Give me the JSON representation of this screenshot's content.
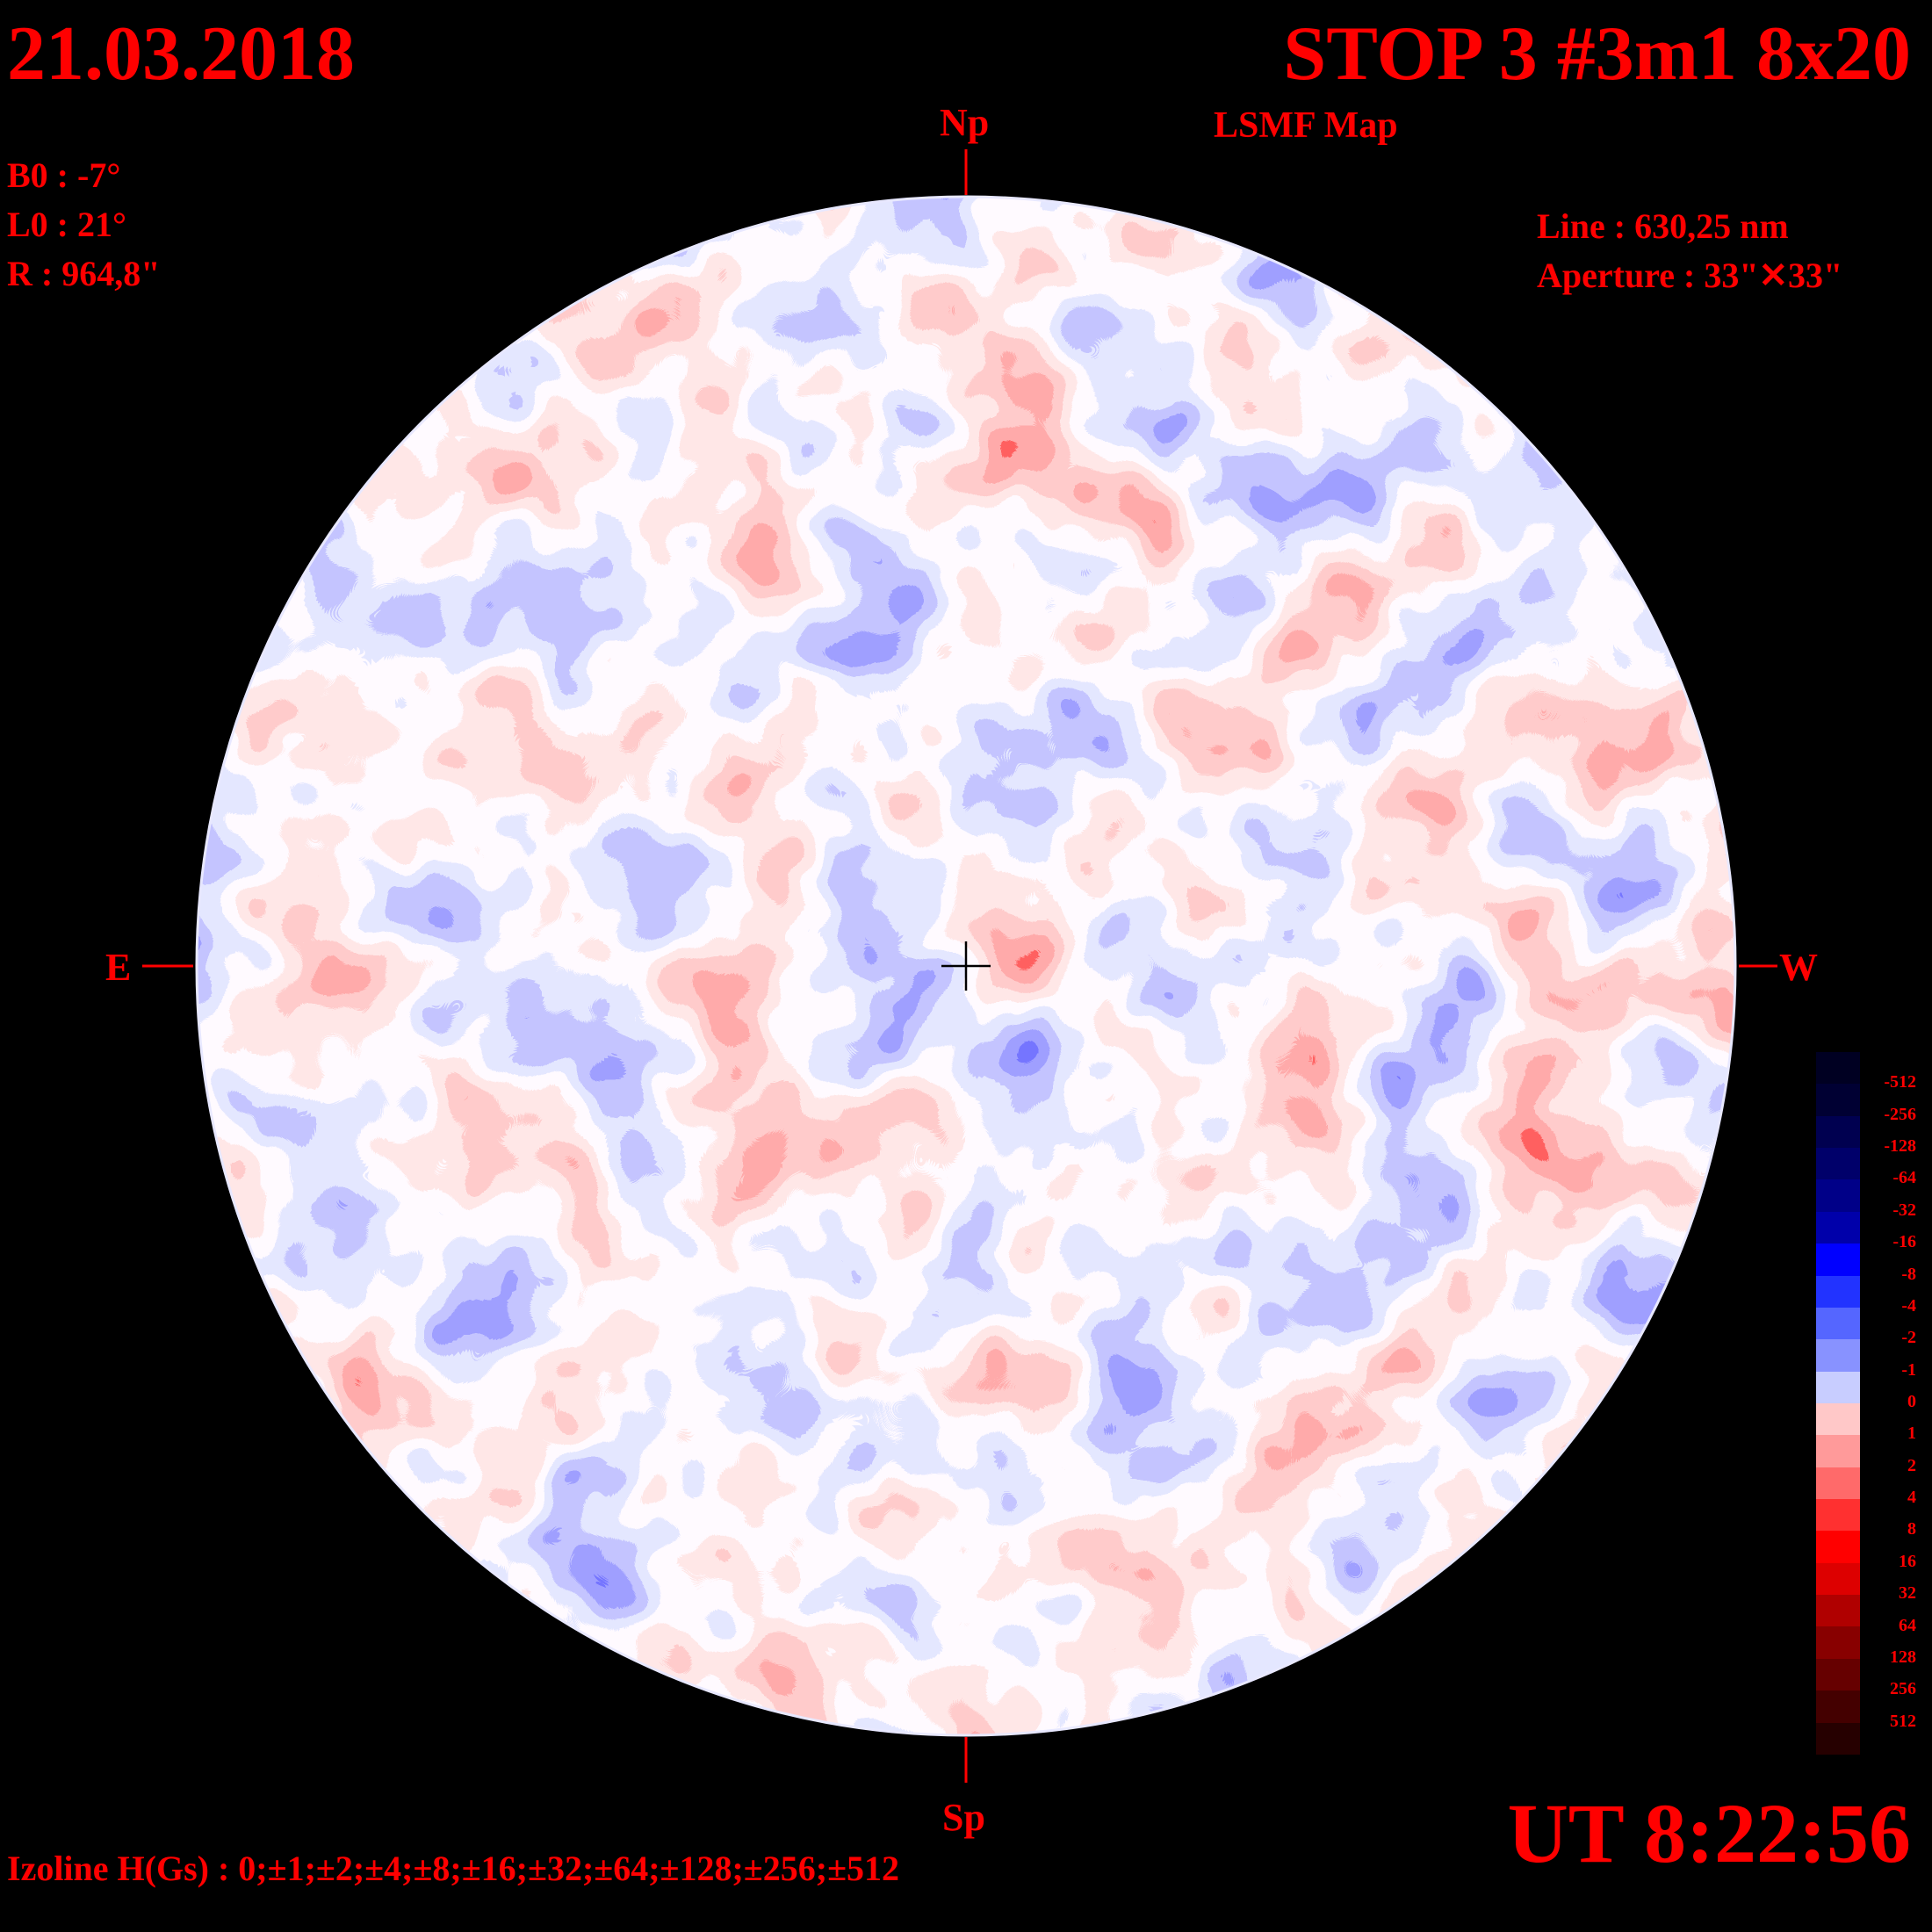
{
  "header": {
    "date": "21.03.2018",
    "title": "STOP 3 #3m1 8x20",
    "subtitle": "LSMF  Map"
  },
  "parameters": {
    "b0": "B0 : -7°",
    "l0": "L0 : 21°",
    "radius": "R  : 964,8\""
  },
  "instrument": {
    "line": "Line :  630,25 nm",
    "aperture": "Aperture : 33\"✕33\""
  },
  "directions": {
    "north": "Np",
    "south": "Sp",
    "east": "E",
    "west": "W"
  },
  "time": "UT 8:22:56",
  "isolines": "Izoline H(Gs) : 0;±1;±2;±4;±8;±16;±32;±64;±128;±256;±512",
  "legend": {
    "labels": [
      "-512",
      "-256",
      "-128",
      "-64",
      "-32",
      "-16",
      "-8",
      "-4",
      "-2",
      "-1",
      "0",
      "1",
      "2",
      "4",
      "8",
      "16",
      "32",
      "64",
      "128",
      "256",
      "512"
    ],
    "colors": [
      "#000022",
      "#000033",
      "#000050",
      "#00006a",
      "#000088",
      "#0000aa",
      "#0000ff",
      "#2233ff",
      "#5566ff",
      "#8892ff",
      "#c8cdff",
      "#ffc8c8",
      "#ff9a9a",
      "#ff6a6a",
      "#ff3030",
      "#ff0000",
      "#dd0000",
      "#b00000",
      "#880000",
      "#660000",
      "#440000",
      "#260000"
    ]
  }
}
